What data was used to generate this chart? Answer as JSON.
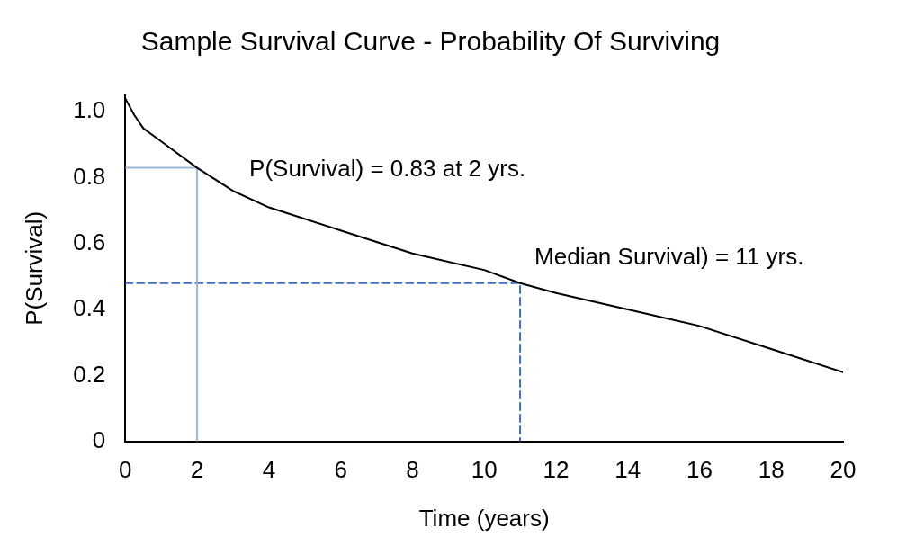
{
  "chart_data": {
    "type": "line",
    "title": "Sample Survival Curve - Probability Of Surviving",
    "xlabel": "Time (years)",
    "ylabel": "P(Survival)",
    "xlim": [
      0,
      20
    ],
    "xticks": [
      0,
      2,
      4,
      6,
      8,
      10,
      12,
      14,
      16,
      18,
      20
    ],
    "ylim": [
      0,
      1.05
    ],
    "yticks": [
      0,
      0.2,
      0.4,
      0.6,
      0.8,
      {
        "value": 1,
        "label": "1.0"
      }
    ],
    "grid": false,
    "legend": false,
    "marker": "none",
    "series": [
      {
        "color": "#000000",
        "line_style": "solid",
        "x": [
          0,
          0.25,
          0.5,
          1,
          2,
          3,
          4,
          6,
          8,
          10,
          11,
          12,
          14,
          16,
          18,
          20
        ],
        "values": [
          1.04,
          0.99,
          0.95,
          0.91,
          0.83,
          0.76,
          0.71,
          0.64,
          0.57,
          0.52,
          0.48,
          0.45,
          0.4,
          0.35,
          0.28,
          0.21
        ]
      },
      {
        "color": "#9ab8d8",
        "line_style": "solid",
        "x": [
          0,
          2,
          2
        ],
        "values": [
          0.83,
          0.83,
          0
        ]
      },
      {
        "color": "#3d6fc4",
        "line_style": "dashed",
        "x": [
          0,
          11,
          11
        ],
        "values": [
          0.48,
          0.48,
          0
        ]
      }
    ],
    "annotations": [
      {
        "text": "P(Survival) = 0.83 at 2 yrs.",
        "x": 2,
        "y": 0.83
      },
      {
        "text": "Median Survival) = 11 yrs.",
        "x": 11,
        "y": 0.48
      }
    ]
  }
}
